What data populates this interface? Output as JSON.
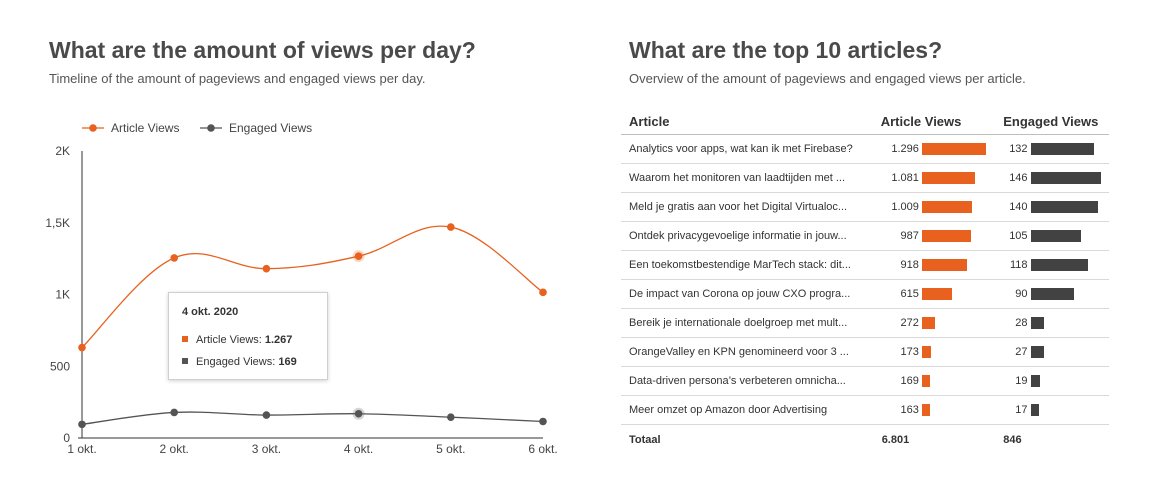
{
  "left": {
    "title": "What are the amount of views per day?",
    "subtitle": "Timeline of the amount of pageviews and engaged views per day."
  },
  "chart_data": {
    "type": "line",
    "x": [
      "1 okt.",
      "2 okt.",
      "3 okt.",
      "4 okt.",
      "5 okt.",
      "6 okt."
    ],
    "series": [
      {
        "name": "Article Views",
        "color": "#e8611f",
        "values": [
          630,
          1255,
          1180,
          1267,
          1470,
          1015
        ]
      },
      {
        "name": "Engaged Views",
        "color": "#545454",
        "values": [
          95,
          178,
          160,
          169,
          145,
          115
        ]
      }
    ],
    "ylim": [
      0,
      2000
    ],
    "yticks": [
      {
        "value": 0,
        "label": "0"
      },
      {
        "value": 500,
        "label": "500"
      },
      {
        "value": 1000,
        "label": "1K"
      },
      {
        "value": 1500,
        "label": "1,5K"
      },
      {
        "value": 2000,
        "label": "2K"
      }
    ],
    "legend_position": "top-left",
    "grid": false,
    "highlight_index": 3
  },
  "tooltip": {
    "date": "4 okt. 2020",
    "row1_label": "Article Views: ",
    "row1_value": "1.267",
    "row2_label": "Engaged Views: ",
    "row2_value": "169"
  },
  "right": {
    "title": "What are the top 10 articles?",
    "subtitle": "Overview of the amount of pageviews and engaged views per article."
  },
  "table": {
    "headers": {
      "article": "Article",
      "views": "Article Views",
      "engaged": "Engaged Views"
    },
    "max_views": 1296,
    "max_engaged": 146,
    "rows": [
      {
        "article": "Analytics voor apps, wat kan ik met Firebase?",
        "views_label": "1.296",
        "views": 1296,
        "engaged_label": "132",
        "engaged": 132
      },
      {
        "article": "Waarom het monitoren van laadtijden met ...",
        "views_label": "1.081",
        "views": 1081,
        "engaged_label": "146",
        "engaged": 146
      },
      {
        "article": "Meld je gratis aan voor het Digital Virtualoc...",
        "views_label": "1.009",
        "views": 1009,
        "engaged_label": "140",
        "engaged": 140
      },
      {
        "article": "Ontdek privacygevoelige informatie in jouw...",
        "views_label": "987",
        "views": 987,
        "engaged_label": "105",
        "engaged": 105
      },
      {
        "article": "Een toekomstbestendige MarTech stack: dit...",
        "views_label": "918",
        "views": 918,
        "engaged_label": "118",
        "engaged": 118
      },
      {
        "article": "De impact van Corona op jouw CXO progra...",
        "views_label": "615",
        "views": 615,
        "engaged_label": "90",
        "engaged": 90
      },
      {
        "article": "Bereik je internationale doelgroep met mult...",
        "views_label": "272",
        "views": 272,
        "engaged_label": "28",
        "engaged": 28
      },
      {
        "article": "OrangeValley en KPN genomineerd voor 3 ...",
        "views_label": "173",
        "views": 173,
        "engaged_label": "27",
        "engaged": 27
      },
      {
        "article": "Data-driven persona’s verbeteren omnicha...",
        "views_label": "169",
        "views": 169,
        "engaged_label": "19",
        "engaged": 19
      },
      {
        "article": "Meer omzet op Amazon door Advertising",
        "views_label": "163",
        "views": 163,
        "engaged_label": "17",
        "engaged": 17
      }
    ],
    "total_label": "Totaal",
    "total_views": "6.801",
    "total_engaged": "846"
  }
}
